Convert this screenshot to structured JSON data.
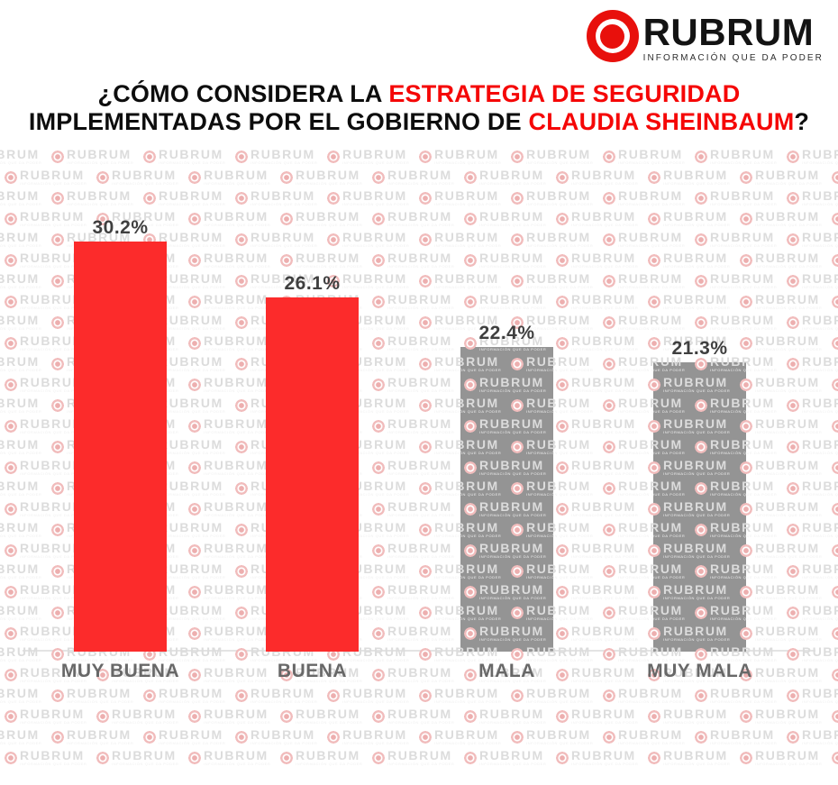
{
  "brand": {
    "name": "RUBRUM",
    "tagline": "INFORMACIÓN QUE DA PODER",
    "logo_icon": "target-icon",
    "logo_red": "#e8100c"
  },
  "title": {
    "line1": [
      {
        "text": "¿CÓMO CONSIDERA LA ",
        "color": "#0d0d0d"
      },
      {
        "text": "ESTRATEGIA DE SEGURIDAD",
        "color": "#f50707"
      }
    ],
    "line2": [
      {
        "text": "IMPLEMENTADAS POR EL GOBIERNO DE ",
        "color": "#0d0d0d"
      },
      {
        "text": "CLAUDIA SHEINBAUM",
        "color": "#f50707"
      },
      {
        "text": "?",
        "color": "#0d0d0d"
      }
    ]
  },
  "chart_data": {
    "type": "bar",
    "title": "¿CÓMO CONSIDERA LA ESTRATEGIA DE SEGURIDAD IMPLEMENTADAS POR EL GOBIERNO DE CLAUDIA SHEINBAUM?",
    "categories": [
      "MUY BUENA",
      "BUENA",
      "MALA",
      "MUY MALA"
    ],
    "values": [
      30.2,
      26.1,
      22.4,
      21.3
    ],
    "value_labels": [
      "30.2%",
      "26.1%",
      "22.4%",
      "21.3%"
    ],
    "bar_colors": [
      "#fc2b2b",
      "#fc2b2b",
      "#949494",
      "#949494"
    ],
    "xlabel": "",
    "ylabel": "",
    "ylim": [
      0,
      32
    ],
    "grid": false,
    "legend": false,
    "value_label_color": "#3f3f3f",
    "category_label_color": "#686868",
    "axis_line_color": "#e4e4e4"
  },
  "watermark": {
    "text": "RUBRUM",
    "tagline": "INFORMACIÓN QUE DA PODER",
    "icon": "target-icon",
    "circle_color": "#f1bcbc",
    "text_color": "#dcdcdc"
  }
}
